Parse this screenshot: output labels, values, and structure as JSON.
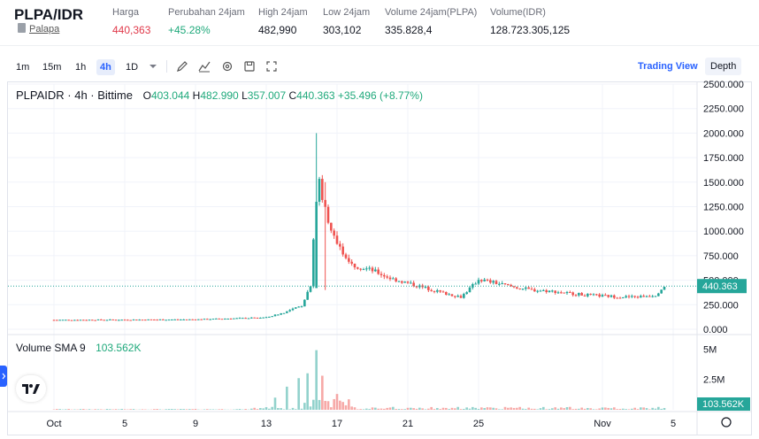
{
  "header": {
    "pair": "PLPA/IDR",
    "token_name": "Palapa",
    "stats": [
      {
        "label": "Harga",
        "value": "440,363",
        "tone": "red"
      },
      {
        "label": "Perubahan 24jam",
        "value": "+45.28%",
        "tone": "green"
      },
      {
        "label": "High 24jam",
        "value": "482,990",
        "tone": "neutral"
      },
      {
        "label": "Low 24jam",
        "value": "303,102",
        "tone": "neutral"
      },
      {
        "label": "Volume 24jam(PLPA)",
        "value": "335.828,4",
        "tone": "neutral"
      },
      {
        "label": "Volume(IDR)",
        "value": "128.723.305,125",
        "tone": "neutral"
      }
    ]
  },
  "toolbar": {
    "timeframes": [
      "1m",
      "15m",
      "1h",
      "4h",
      "1D"
    ],
    "active_timeframe": "4h",
    "tools": [
      "pencil-icon",
      "indicator-icon",
      "settings-icon",
      "save-icon",
      "fullscreen-icon"
    ],
    "view_buttons": [
      "Trading View",
      "Depth"
    ],
    "active_view": "Trading View"
  },
  "legend": {
    "symbol": "PLPAIDR · 4h · Bittime",
    "o_label": "O",
    "o": "403.044",
    "h_label": "H",
    "h": "482.990",
    "l_label": "L",
    "l": "357.007",
    "c_label": "C",
    "c": "440.363",
    "change": "+35.496 (+8.77%)"
  },
  "volume_legend": {
    "label": "Volume SMA 9",
    "value": "103.562K"
  },
  "colors": {
    "up": "#26a69a",
    "down": "#ef5350",
    "accent": "#2962ff",
    "last_price": "#26a69a"
  },
  "chart_data": {
    "type": "candlestick",
    "price_axis_ticks": [
      "2500.000",
      "2250.000",
      "2000.000",
      "1750.000",
      "1500.000",
      "1250.000",
      "1000.000",
      "750.000",
      "500.000",
      "250.000",
      "0.000"
    ],
    "price_axis_values": [
      2500,
      2250,
      2000,
      1750,
      1500,
      1250,
      1000,
      750,
      500,
      250,
      0
    ],
    "last_price": 440.363,
    "last_price_label": "440.363",
    "volume_axis_ticks": [
      "5M",
      "2.5M"
    ],
    "volume_axis_values": [
      5000000,
      2500000
    ],
    "volume_last_label": "103.562K",
    "x_tick_labels": [
      "Oct",
      "5",
      "9",
      "13",
      "17",
      "21",
      "25",
      "Nov",
      "5"
    ],
    "x_tick_days": [
      1,
      5,
      9,
      13,
      17,
      21,
      25,
      32,
      36
    ],
    "series_close": [
      [
        1,
        95
      ],
      [
        5,
        97
      ],
      [
        9,
        100
      ],
      [
        11,
        110
      ],
      [
        13,
        120
      ],
      [
        14,
        170
      ],
      [
        15,
        240
      ],
      [
        15.5,
        450
      ],
      [
        15.8,
        1300
      ],
      [
        16,
        1500
      ],
      [
        16.3,
        1250
      ],
      [
        16.7,
        1000
      ],
      [
        17,
        850
      ],
      [
        17.5,
        750
      ],
      [
        18,
        650
      ],
      [
        19,
        600
      ],
      [
        20,
        520
      ],
      [
        21,
        470
      ],
      [
        22,
        420
      ],
      [
        23,
        370
      ],
      [
        24,
        330
      ],
      [
        24.7,
        450
      ],
      [
        25,
        510
      ],
      [
        26,
        470
      ],
      [
        27,
        430
      ],
      [
        28,
        400
      ],
      [
        29,
        390
      ],
      [
        30,
        370
      ],
      [
        31,
        350
      ],
      [
        32,
        340
      ],
      [
        33,
        330
      ],
      [
        34,
        330
      ],
      [
        35,
        350
      ],
      [
        35.5,
        440
      ]
    ],
    "spike_high": 2000,
    "volume_peaks": [
      [
        15.8,
        4900000
      ],
      [
        15.4,
        3000000
      ],
      [
        16.2,
        2800000
      ],
      [
        14.8,
        2600000
      ],
      [
        14.2,
        1900000
      ],
      [
        17,
        1300000
      ],
      [
        13.5,
        1000000
      ]
    ]
  }
}
